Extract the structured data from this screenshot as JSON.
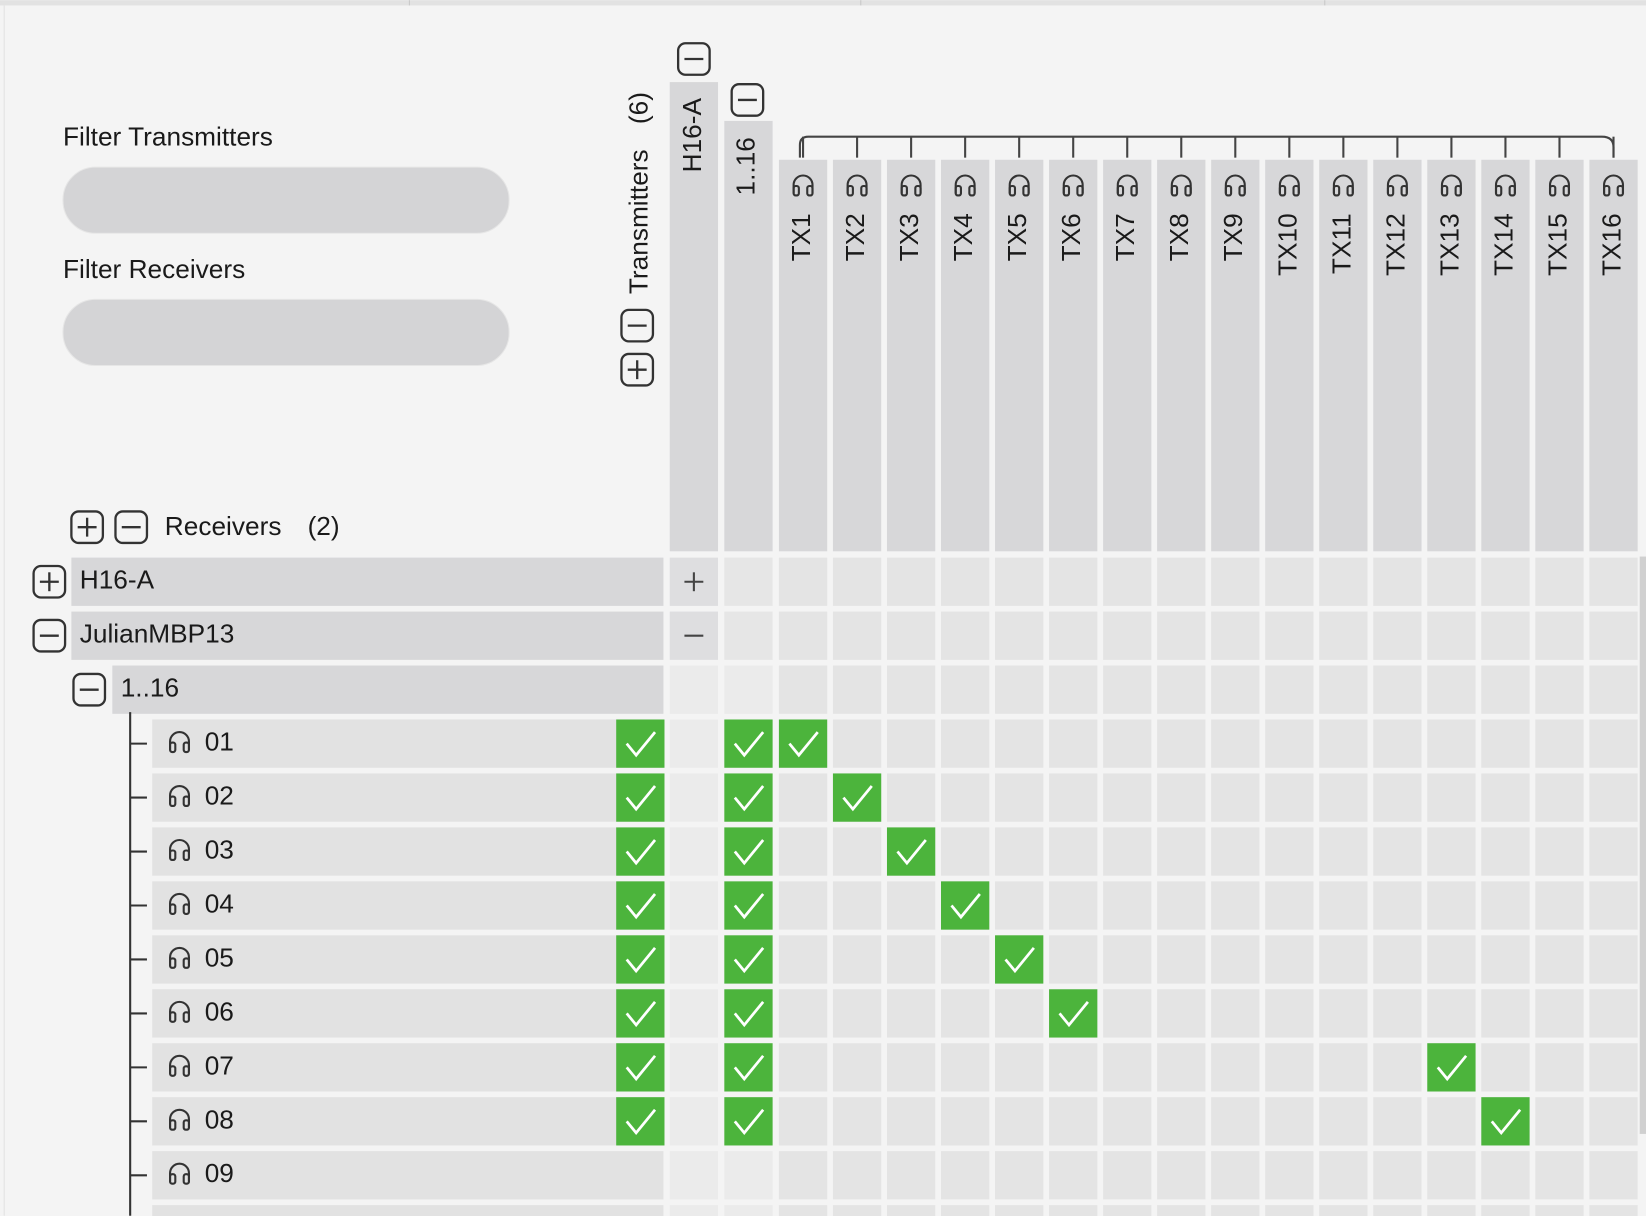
{
  "filters": {
    "transmitters_label": "Filter Transmitters",
    "receivers_label": "Filter Receivers"
  },
  "transmitters": {
    "title": "Transmitters",
    "count": "(6)",
    "device": "H16-A",
    "group": "1..16",
    "channels": [
      "TX1",
      "TX2",
      "TX3",
      "TX4",
      "TX5",
      "TX6",
      "TX7",
      "TX8",
      "TX9",
      "TX10",
      "TX11",
      "TX12",
      "TX13",
      "TX14",
      "TX15",
      "TX16"
    ]
  },
  "receivers": {
    "title": "Receivers",
    "count": "(2)",
    "devices": [
      {
        "name": "H16-A",
        "expanded": false
      },
      {
        "name": "JulianMBP13",
        "expanded": true,
        "group": "1..16",
        "channels": [
          {
            "name": "01",
            "subscriptions": [
              true,
              false,
              false,
              false,
              false,
              false,
              false,
              false,
              false,
              false,
              false,
              false,
              false,
              false,
              false,
              false
            ]
          },
          {
            "name": "02",
            "subscriptions": [
              false,
              true,
              false,
              false,
              false,
              false,
              false,
              false,
              false,
              false,
              false,
              false,
              false,
              false,
              false,
              false
            ]
          },
          {
            "name": "03",
            "subscriptions": [
              false,
              false,
              true,
              false,
              false,
              false,
              false,
              false,
              false,
              false,
              false,
              false,
              false,
              false,
              false,
              false
            ]
          },
          {
            "name": "04",
            "subscriptions": [
              false,
              false,
              false,
              true,
              false,
              false,
              false,
              false,
              false,
              false,
              false,
              false,
              false,
              false,
              false,
              false
            ]
          },
          {
            "name": "05",
            "subscriptions": [
              false,
              false,
              false,
              false,
              true,
              false,
              false,
              false,
              false,
              false,
              false,
              false,
              false,
              false,
              false,
              false
            ]
          },
          {
            "name": "06",
            "subscriptions": [
              false,
              false,
              false,
              false,
              false,
              true,
              false,
              false,
              false,
              false,
              false,
              false,
              false,
              false,
              false,
              false
            ]
          },
          {
            "name": "07",
            "subscriptions": [
              false,
              false,
              false,
              false,
              false,
              false,
              false,
              false,
              false,
              false,
              false,
              false,
              true,
              false,
              false,
              false
            ]
          },
          {
            "name": "08",
            "subscriptions": [
              false,
              false,
              false,
              false,
              false,
              false,
              false,
              false,
              false,
              false,
              false,
              false,
              false,
              true,
              false,
              false
            ]
          },
          {
            "name": "09",
            "subscriptions": [
              false,
              false,
              false,
              false,
              false,
              false,
              false,
              false,
              false,
              false,
              false,
              false,
              false,
              false,
              false,
              false
            ]
          }
        ]
      }
    ]
  }
}
